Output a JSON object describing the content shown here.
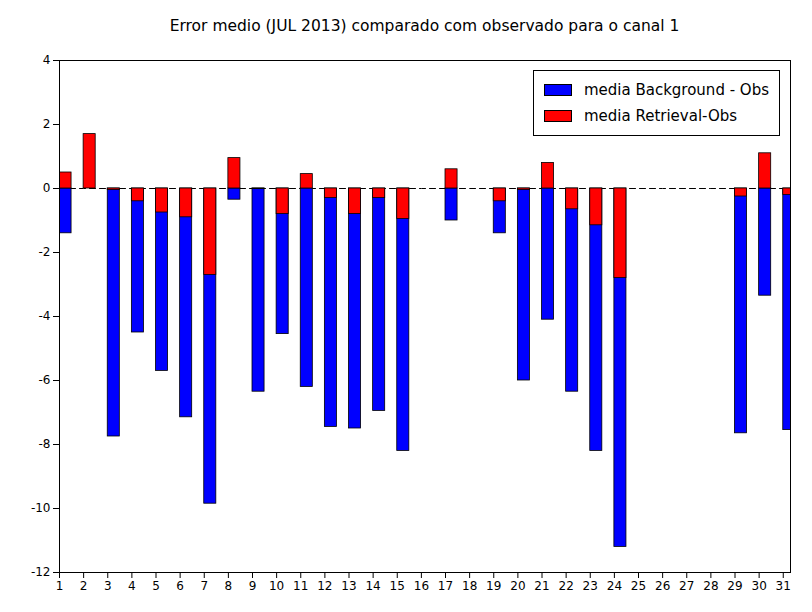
{
  "chart_data": {
    "type": "bar",
    "title": "Error medio (JUL 2013) comparado com observado para o canal 1",
    "x": [
      1,
      2,
      3,
      4,
      5,
      6,
      7,
      8,
      9,
      10,
      11,
      12,
      13,
      14,
      15,
      16,
      17,
      18,
      19,
      20,
      21,
      22,
      23,
      24,
      25,
      26,
      27,
      28,
      29,
      30,
      31
    ],
    "series": [
      {
        "name": "media Background - Obs",
        "color": "#0000ff",
        "type": "bar",
        "values": [
          -1.4,
          0,
          -7.75,
          -4.5,
          -5.7,
          -7.15,
          -9.85,
          -0.35,
          -6.35,
          -4.55,
          -6.2,
          -7.45,
          -7.5,
          -6.95,
          -8.2,
          null,
          -1.0,
          null,
          -1.4,
          -6.0,
          -4.1,
          -6.35,
          -8.2,
          -11.2,
          null,
          null,
          null,
          null,
          -7.65,
          -3.35,
          -7.55
        ]
      },
      {
        "name": "media Retrieval-Obs",
        "color": "#ff0000",
        "type": "bar",
        "values": [
          0.5,
          1.7,
          -0.05,
          -0.4,
          -0.75,
          -0.9,
          -2.7,
          0.95,
          -0.02,
          -0.8,
          0.45,
          -0.3,
          -0.8,
          -0.3,
          -0.95,
          null,
          0.6,
          null,
          -0.4,
          -0.05,
          0.8,
          -0.65,
          -1.15,
          -2.8,
          null,
          null,
          null,
          null,
          -0.25,
          1.1,
          -0.2
        ]
      },
      {
        "color": "#000000",
        "type": "line",
        "line_style": "dashed",
        "values": [
          0,
          0,
          0,
          0,
          0,
          0,
          0,
          0,
          0,
          0,
          0,
          0,
          0,
          0,
          0,
          0,
          0,
          0,
          0,
          0,
          0,
          0,
          0,
          0,
          0,
          0,
          0,
          0,
          0,
          0,
          0
        ]
      }
    ],
    "xlim": [
      1,
      31.3
    ],
    "xticks": [
      1,
      2,
      3,
      4,
      5,
      6,
      7,
      8,
      9,
      10,
      11,
      12,
      13,
      14,
      15,
      16,
      17,
      18,
      19,
      20,
      21,
      22,
      23,
      24,
      25,
      26,
      27,
      28,
      29,
      30,
      31
    ],
    "ylim": [
      -12,
      4
    ],
    "yticks": [
      -12,
      -10,
      -8,
      -6,
      -4,
      -2,
      0,
      2,
      4
    ],
    "grid": false,
    "legend": "upper right"
  }
}
